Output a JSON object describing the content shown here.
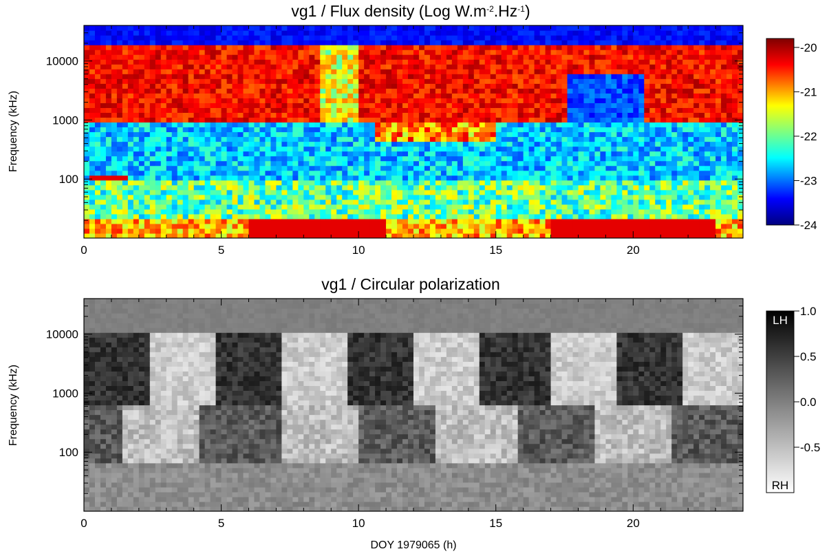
{
  "chart_data": [
    {
      "type": "heatmap",
      "title": "vg1 / Flux density (Log W.m",
      "title_sup1": "-2",
      "title_mid": ".Hz",
      "title_sup2": "-1",
      "title_end": ")",
      "ylabel": "Frequency (kHz)",
      "xlabel": "",
      "x_range": [
        0,
        24
      ],
      "y_range_khz": [
        10,
        40000
      ],
      "y_scale": "log",
      "x_ticks": [
        "0",
        "5",
        "10",
        "15",
        "20"
      ],
      "y_ticks": [
        "100",
        "1000",
        "10000"
      ],
      "colorbar": {
        "colormap": "jet",
        "range": [
          -24,
          -19.8
        ],
        "ticks": [
          "-20",
          "-21",
          "-22",
          "-23",
          "-24"
        ],
        "tick_values": [
          -20,
          -21,
          -22,
          -23,
          -24
        ]
      }
    },
    {
      "type": "heatmap",
      "title": "vg1 / Circular polarization",
      "ylabel": "Frequency (kHz)",
      "xlabel": "DOY 1979065 (h)",
      "x_range": [
        0,
        24
      ],
      "y_range_khz": [
        10,
        40000
      ],
      "y_scale": "log",
      "x_ticks": [
        "0",
        "5",
        "10",
        "15",
        "20"
      ],
      "y_ticks": [
        "100",
        "1000",
        "10000"
      ],
      "colorbar": {
        "colormap": "gray",
        "range": [
          -1,
          1
        ],
        "ticks": [
          "1.0",
          "0.5",
          "0.0",
          "-0.5"
        ],
        "tick_values": [
          1.0,
          0.5,
          0.0,
          -0.5
        ],
        "top_label": "LH",
        "bottom_label": "RH"
      }
    }
  ]
}
